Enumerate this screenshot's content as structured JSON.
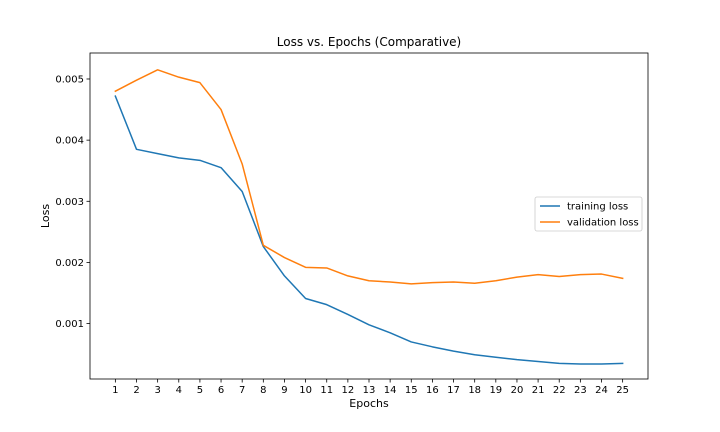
{
  "chart_data": {
    "type": "line",
    "title": "Loss vs. Epochs (Comparative)",
    "xlabel": "Epochs",
    "ylabel": "Loss",
    "x": [
      1,
      2,
      3,
      4,
      5,
      6,
      7,
      8,
      9,
      10,
      11,
      12,
      13,
      14,
      15,
      16,
      17,
      18,
      19,
      20,
      21,
      22,
      23,
      24,
      25
    ],
    "xlim": [
      -0.2,
      26.2
    ],
    "ylim": [
      9.4e-05,
      0.005425
    ],
    "yticks": [
      0.001,
      0.002,
      0.003,
      0.004,
      0.005
    ],
    "ytick_labels": [
      "0.001",
      "0.002",
      "0.003",
      "0.004",
      "0.005"
    ],
    "grid": false,
    "legend_position": "center-right",
    "series": [
      {
        "name": "training loss",
        "color": "#1f77b4",
        "values": [
          0.00472,
          0.00385,
          0.00378,
          0.00371,
          0.00367,
          0.00355,
          0.00316,
          0.00226,
          0.00178,
          0.00141,
          0.00131,
          0.00115,
          0.00098,
          0.00085,
          0.0007,
          0.00062,
          0.00055,
          0.00049,
          0.00045,
          0.00041,
          0.00038,
          0.00035,
          0.00034,
          0.00034,
          0.00035
        ]
      },
      {
        "name": "validation loss",
        "color": "#ff7f0e",
        "values": [
          0.0048,
          0.00498,
          0.00515,
          0.00503,
          0.00494,
          0.0045,
          0.00361,
          0.00228,
          0.00208,
          0.00192,
          0.00191,
          0.00178,
          0.0017,
          0.00168,
          0.00165,
          0.00167,
          0.00168,
          0.00166,
          0.0017,
          0.00176,
          0.0018,
          0.00177,
          0.0018,
          0.00181,
          0.00174
        ]
      }
    ]
  }
}
